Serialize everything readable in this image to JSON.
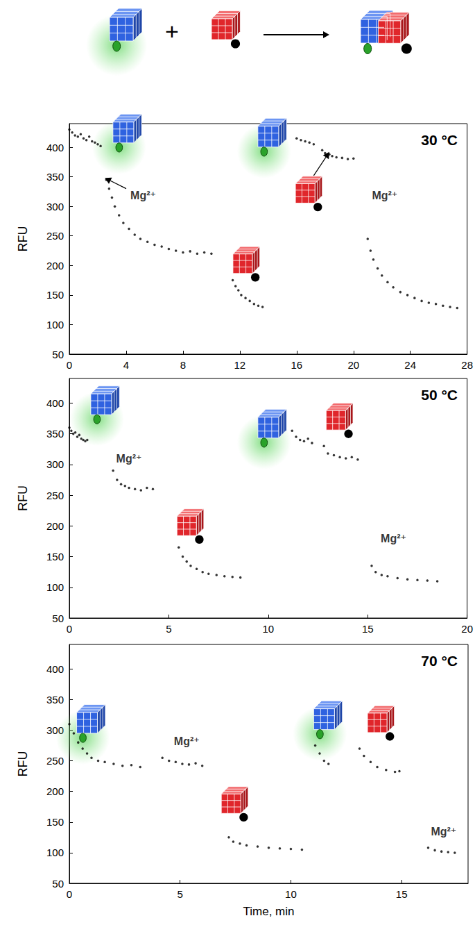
{
  "scheme": {
    "operator": "+"
  },
  "chart_data": [
    {
      "type": "scatter",
      "title": "30 °C",
      "y_label": "RFU",
      "color": "#000000",
      "grid": false,
      "xlim": [
        0,
        28
      ],
      "xticks": [
        0,
        4,
        8,
        12,
        16,
        20,
        24,
        28
      ],
      "ylim": [
        50,
        440
      ],
      "yticks": [
        50,
        100,
        150,
        200,
        250,
        300,
        350,
        400
      ],
      "x": [
        0,
        0.2,
        0.4,
        0.6,
        0.8,
        1.0,
        1.2,
        1.4,
        1.6,
        1.8,
        2.0,
        2.2,
        2.6,
        2.8,
        3.0,
        3.2,
        3.5,
        3.8,
        4.2,
        4.6,
        5.0,
        5.5,
        6.0,
        6.5,
        7.0,
        7.5,
        8.0,
        8.5,
        9.0,
        9.5,
        10.0,
        11.5,
        11.7,
        11.9,
        12.1,
        12.4,
        12.7,
        13.0,
        13.3,
        13.6,
        16.0,
        16.3,
        16.6,
        16.9,
        17.2,
        17.8,
        18.0,
        18.3,
        18.5,
        18.8,
        19.2,
        19.6,
        20.0,
        21.0,
        21.2,
        21.4,
        21.7,
        22.0,
        22.4,
        22.8,
        23.3,
        23.8,
        24.3,
        24.8,
        25.3,
        25.8,
        26.3,
        26.8,
        27.3
      ],
      "values": [
        430,
        425,
        420,
        418,
        422,
        415,
        412,
        418,
        410,
        408,
        405,
        402,
        345,
        330,
        315,
        300,
        285,
        272,
        262,
        252,
        245,
        240,
        235,
        232,
        228,
        225,
        222,
        224,
        220,
        222,
        220,
        175,
        165,
        158,
        150,
        145,
        140,
        135,
        132,
        130,
        415,
        412,
        410,
        408,
        405,
        395,
        390,
        388,
        385,
        383,
        382,
        380,
        381,
        245,
        225,
        210,
        195,
        183,
        172,
        163,
        155,
        150,
        145,
        140,
        137,
        135,
        132,
        130,
        128
      ],
      "annotations": [
        {
          "text": "Mg²⁺",
          "x": 5.2,
          "y": 318
        },
        {
          "text": "Mg²⁺",
          "x": 22.2,
          "y": 318
        }
      ]
    },
    {
      "type": "scatter",
      "title": "50 °C",
      "y_label": "RFU",
      "color": "#000000",
      "grid": false,
      "xlim": [
        0,
        20
      ],
      "xticks": [
        0,
        5,
        10,
        15,
        20
      ],
      "ylim": [
        50,
        440
      ],
      "yticks": [
        50,
        100,
        150,
        200,
        250,
        300,
        350,
        400
      ],
      "x": [
        0,
        0.1,
        0.2,
        0.3,
        0.4,
        0.5,
        0.6,
        0.7,
        0.8,
        0.9,
        2.2,
        2.4,
        2.6,
        2.8,
        3.0,
        3.3,
        3.6,
        3.9,
        4.2,
        5.5,
        5.7,
        5.9,
        6.1,
        6.4,
        6.7,
        7.0,
        7.4,
        7.8,
        8.2,
        8.6,
        11.2,
        11.4,
        11.6,
        11.8,
        12.0,
        12.2,
        12.8,
        13.0,
        13.3,
        13.6,
        13.9,
        14.2,
        14.5,
        15.2,
        15.4,
        15.7,
        16.0,
        16.5,
        17.0,
        17.5,
        18.0,
        18.5
      ],
      "values": [
        360,
        355,
        350,
        352,
        345,
        348,
        342,
        340,
        338,
        340,
        290,
        275,
        268,
        265,
        262,
        260,
        258,
        262,
        260,
        165,
        150,
        142,
        135,
        130,
        125,
        122,
        120,
        118,
        117,
        116,
        355,
        345,
        340,
        338,
        342,
        335,
        330,
        318,
        315,
        312,
        310,
        312,
        308,
        135,
        125,
        120,
        118,
        115,
        113,
        112,
        111,
        110
      ],
      "annotations": [
        {
          "text": "Mg²⁺",
          "x": 3.0,
          "y": 310
        },
        {
          "text": "Mg²⁺",
          "x": 16.3,
          "y": 180
        }
      ]
    },
    {
      "type": "scatter",
      "title": "70 °C",
      "y_label": "RFU",
      "x_label": "Time, min",
      "color": "#000000",
      "grid": false,
      "xlim": [
        0,
        18
      ],
      "xticks": [
        0,
        5,
        10,
        15
      ],
      "ylim": [
        50,
        440
      ],
      "yticks": [
        50,
        100,
        150,
        200,
        250,
        300,
        350,
        400
      ],
      "x": [
        0,
        0.2,
        0.4,
        0.6,
        0.8,
        1.0,
        1.3,
        1.6,
        2.0,
        2.4,
        2.8,
        3.2,
        4.2,
        4.5,
        4.8,
        5.1,
        5.4,
        5.7,
        6.0,
        7.2,
        7.4,
        7.7,
        8.0,
        8.5,
        9.0,
        9.5,
        10.0,
        10.5,
        11.1,
        11.3,
        11.5,
        11.7,
        13.1,
        13.3,
        13.6,
        13.9,
        14.3,
        14.7,
        14.9,
        16.2,
        16.5,
        16.8,
        17.1,
        17.4
      ],
      "values": [
        310,
        295,
        280,
        270,
        262,
        255,
        250,
        248,
        245,
        242,
        243,
        240,
        255,
        250,
        248,
        245,
        244,
        246,
        242,
        125,
        118,
        115,
        112,
        110,
        108,
        107,
        106,
        105,
        275,
        262,
        250,
        245,
        270,
        258,
        248,
        240,
        235,
        232,
        233,
        108,
        104,
        102,
        101,
        100
      ],
      "annotations": [
        {
          "text": "Mg²⁺",
          "x": 5.3,
          "y": 282
        },
        {
          "text": "Mg²⁺",
          "x": 16.9,
          "y": 135
        }
      ]
    }
  ]
}
